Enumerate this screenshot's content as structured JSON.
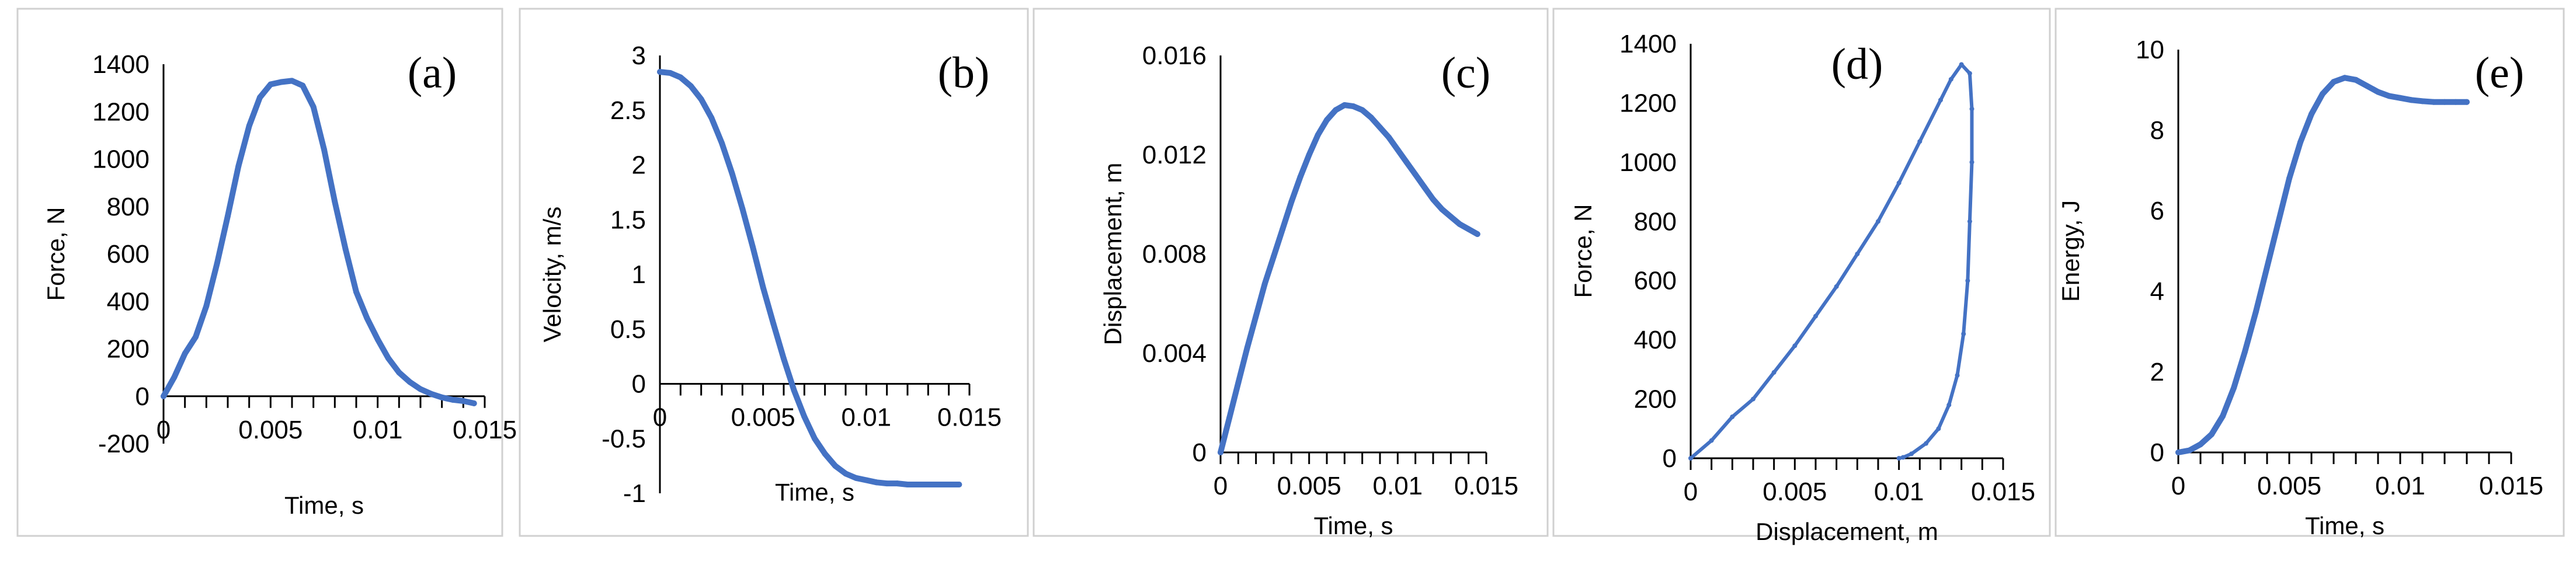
{
  "series_color": "#4472c4",
  "chart_data": [
    {
      "type": "line",
      "letter": "(a)",
      "xlabel": "Time, s",
      "ylabel": "Force, N",
      "xlim": [
        0,
        0.015
      ],
      "ylim": [
        -200,
        1400
      ],
      "xticks": [
        0,
        0.005,
        0.01,
        0.015
      ],
      "xtick_labels": [
        "0",
        "0.005",
        "0.01",
        "0.015"
      ],
      "yticks": [
        -200,
        0,
        200,
        400,
        600,
        800,
        1000,
        1200,
        1400
      ],
      "ytick_labels": [
        "-200",
        "0",
        "200",
        "400",
        "600",
        "800",
        "1000",
        "1200",
        "1400"
      ],
      "x_axis_at": 0,
      "x": [
        0,
        0.0005,
        0.001,
        0.0015,
        0.002,
        0.0025,
        0.003,
        0.0035,
        0.004,
        0.0045,
        0.005,
        0.0055,
        0.006,
        0.0065,
        0.007,
        0.0075,
        0.008,
        0.0085,
        0.009,
        0.0095,
        0.01,
        0.0105,
        0.011,
        0.0115,
        0.012,
        0.0125,
        0.013,
        0.0135,
        0.014,
        0.0145
      ],
      "y": [
        0,
        80,
        180,
        250,
        380,
        560,
        760,
        970,
        1140,
        1260,
        1315,
        1325,
        1330,
        1310,
        1220,
        1040,
        820,
        620,
        440,
        330,
        240,
        160,
        100,
        60,
        30,
        10,
        -5,
        -15,
        -20,
        -30
      ]
    },
    {
      "type": "line",
      "letter": "(b)",
      "xlabel": "Time, s",
      "ylabel": "Velocity, m/s",
      "xlim": [
        0,
        0.015
      ],
      "ylim": [
        -1,
        3
      ],
      "xticks": [
        0,
        0.005,
        0.01,
        0.015
      ],
      "xtick_labels": [
        "0",
        "0.005",
        "0.01",
        "0.015"
      ],
      "yticks": [
        -1,
        -0.5,
        0,
        0.5,
        1,
        1.5,
        2,
        2.5,
        3
      ],
      "ytick_labels": [
        "-1",
        "-0.5",
        "0",
        "0.5",
        "1",
        "1.5",
        "2",
        "2.5",
        "3"
      ],
      "x_axis_at": 0,
      "x": [
        0,
        0.0005,
        0.001,
        0.0015,
        0.002,
        0.0025,
        0.003,
        0.0035,
        0.004,
        0.0045,
        0.005,
        0.0055,
        0.006,
        0.0065,
        0.007,
        0.0075,
        0.008,
        0.0085,
        0.009,
        0.0095,
        0.01,
        0.0105,
        0.011,
        0.0115,
        0.012,
        0.0125,
        0.013,
        0.0135,
        0.014,
        0.0145
      ],
      "y": [
        2.85,
        2.84,
        2.8,
        2.72,
        2.6,
        2.43,
        2.2,
        1.92,
        1.6,
        1.25,
        0.88,
        0.55,
        0.23,
        -0.06,
        -0.3,
        -0.5,
        -0.64,
        -0.75,
        -0.82,
        -0.86,
        -0.88,
        -0.9,
        -0.91,
        -0.91,
        -0.92,
        -0.92,
        -0.92,
        -0.92,
        -0.92,
        -0.92
      ]
    },
    {
      "type": "line",
      "letter": "(c)",
      "xlabel": "Time, s",
      "ylabel": "Displacement, m",
      "xlim": [
        0,
        0.015
      ],
      "ylim": [
        0,
        0.016
      ],
      "xticks": [
        0,
        0.005,
        0.01,
        0.015
      ],
      "xtick_labels": [
        "0",
        "0.005",
        "0.01",
        "0.015"
      ],
      "yticks": [
        0,
        0.004,
        0.008,
        0.012,
        0.016
      ],
      "ytick_labels": [
        "0",
        "0.004",
        "0.008",
        "0.012",
        "0.016"
      ],
      "x_axis_at": 0,
      "x": [
        0,
        0.0005,
        0.001,
        0.0015,
        0.002,
        0.0025,
        0.003,
        0.0035,
        0.004,
        0.0045,
        0.005,
        0.0055,
        0.006,
        0.0065,
        0.007,
        0.0075,
        0.008,
        0.0085,
        0.009,
        0.0095,
        0.01,
        0.0105,
        0.011,
        0.0115,
        0.012,
        0.0125,
        0.013,
        0.0135,
        0.014,
        0.0145
      ],
      "y": [
        0,
        0.0014,
        0.0028,
        0.0042,
        0.0055,
        0.0068,
        0.0079,
        0.009,
        0.0101,
        0.0111,
        0.012,
        0.0128,
        0.0134,
        0.0138,
        0.014,
        0.01395,
        0.0138,
        0.0135,
        0.0131,
        0.0127,
        0.0122,
        0.0117,
        0.0112,
        0.0107,
        0.0102,
        0.0098,
        0.0095,
        0.0092,
        0.009,
        0.0088
      ]
    },
    {
      "type": "scatter",
      "letter": "(d)",
      "xlabel": "Displacement, m",
      "ylabel": "Force, N",
      "xlim": [
        0,
        0.015
      ],
      "ylim": [
        0,
        1400
      ],
      "xticks": [
        0,
        0.005,
        0.01,
        0.015
      ],
      "xtick_labels": [
        "0",
        "0.005",
        "0.01",
        "0.015"
      ],
      "yticks": [
        0,
        200,
        400,
        600,
        800,
        1000,
        1200,
        1400
      ],
      "ytick_labels": [
        "0",
        "200",
        "400",
        "600",
        "800",
        "1000",
        "1200",
        "1400"
      ],
      "x_axis_at": 0,
      "x": [
        0,
        0.001,
        0.002,
        0.003,
        0.004,
        0.005,
        0.006,
        0.007,
        0.008,
        0.009,
        0.01,
        0.011,
        0.012,
        0.0125,
        0.013,
        0.0134,
        0.0135,
        0.0135,
        0.0134,
        0.0133,
        0.0131,
        0.0128,
        0.0124,
        0.0119,
        0.0113,
        0.0106,
        0.0102,
        0.01
      ],
      "y": [
        0,
        60,
        140,
        200,
        290,
        380,
        480,
        580,
        690,
        800,
        930,
        1070,
        1210,
        1280,
        1330,
        1300,
        1180,
        1000,
        800,
        600,
        420,
        280,
        180,
        100,
        50,
        15,
        3,
        0
      ]
    },
    {
      "type": "line",
      "letter": "(e)",
      "xlabel": "Time, s",
      "ylabel": "Energy, J",
      "xlim": [
        0,
        0.015
      ],
      "ylim": [
        0,
        10
      ],
      "xticks": [
        0,
        0.005,
        0.01,
        0.015
      ],
      "xtick_labels": [
        "0",
        "0.005",
        "0.01",
        "0.015"
      ],
      "yticks": [
        0,
        2,
        4,
        6,
        8,
        10
      ],
      "ytick_labels": [
        "0",
        "2",
        "4",
        "6",
        "8",
        "10"
      ],
      "x_axis_at": 0,
      "x": [
        0,
        0.0005,
        0.001,
        0.0015,
        0.002,
        0.0025,
        0.003,
        0.0035,
        0.004,
        0.0045,
        0.005,
        0.0055,
        0.006,
        0.0065,
        0.007,
        0.0075,
        0.008,
        0.0085,
        0.009,
        0.0095,
        0.01,
        0.0105,
        0.011,
        0.0115,
        0.012,
        0.0125,
        0.013
      ],
      "y": [
        0,
        0.05,
        0.2,
        0.45,
        0.9,
        1.6,
        2.5,
        3.5,
        4.6,
        5.7,
        6.8,
        7.7,
        8.4,
        8.9,
        9.2,
        9.3,
        9.25,
        9.1,
        8.95,
        8.85,
        8.8,
        8.75,
        8.72,
        8.7,
        8.7,
        8.7,
        8.7
      ]
    }
  ]
}
